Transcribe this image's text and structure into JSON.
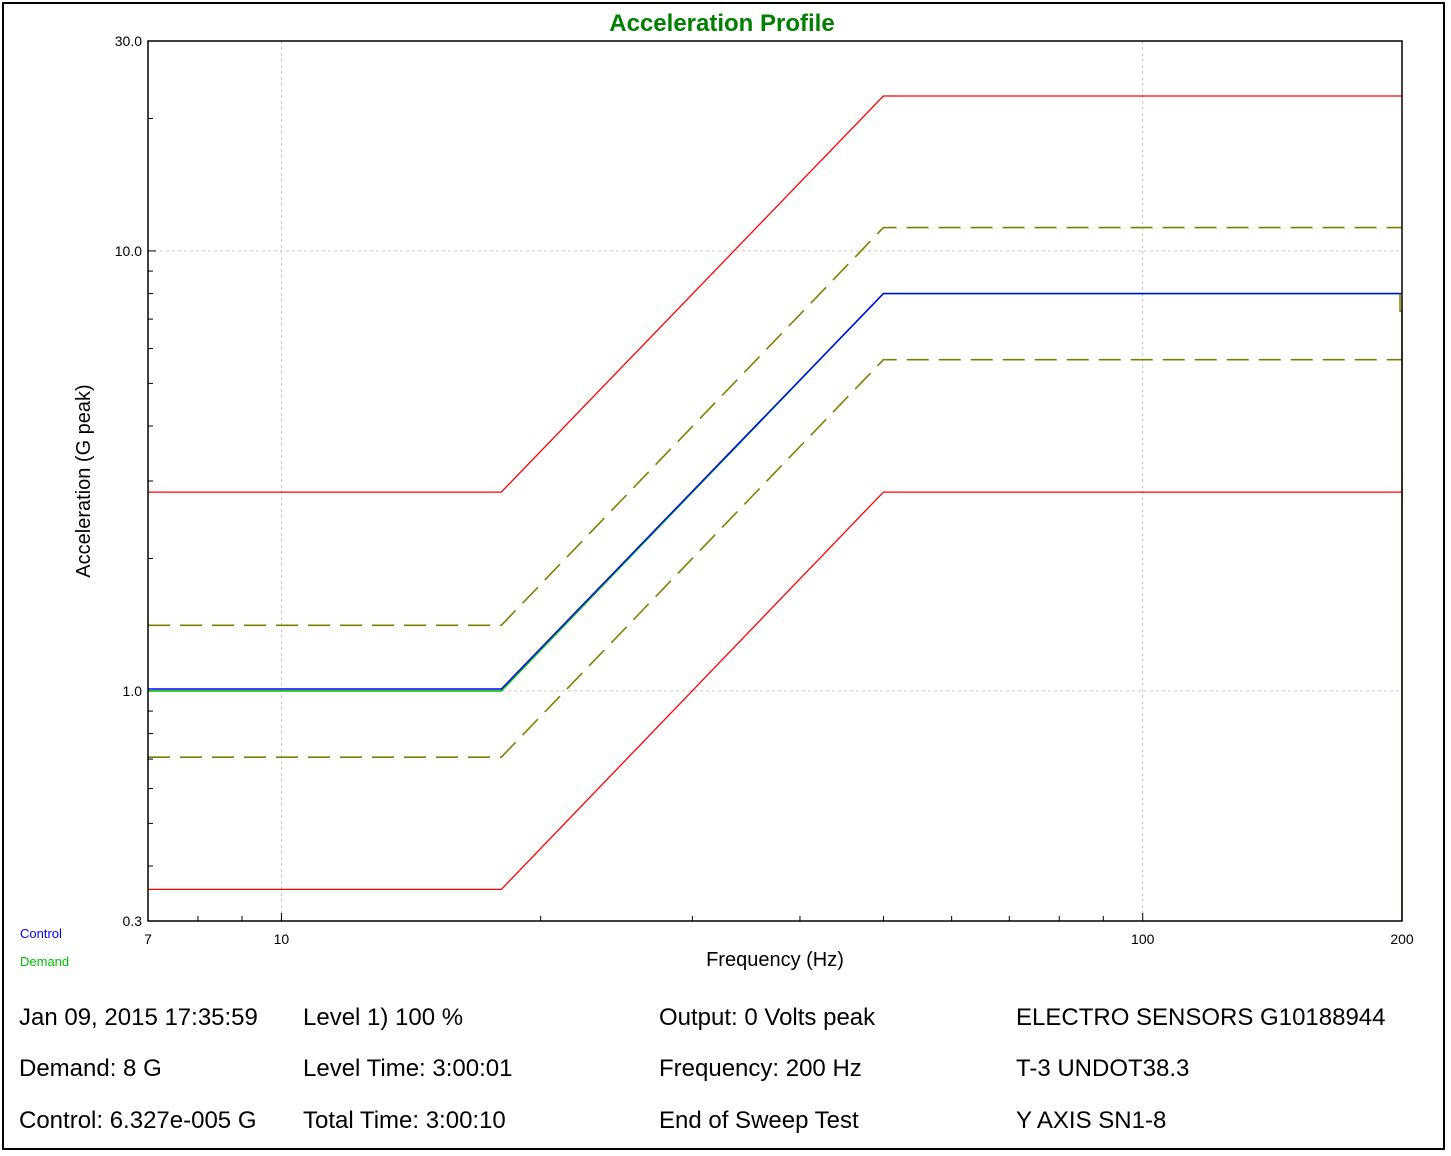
{
  "chart_data": {
    "type": "line",
    "title": "Acceleration Profile",
    "xlabel": "Frequency (Hz)",
    "ylabel": "Acceleration (G peak)",
    "xscale": "log",
    "yscale": "log",
    "xlim": [
      7,
      200
    ],
    "ylim": [
      0.3,
      30.0
    ],
    "x_tick_labels": [
      "7",
      "10",
      "100",
      "200"
    ],
    "x_ticks": [
      7,
      10,
      100,
      200
    ],
    "y_tick_labels": [
      "30.0",
      "10.0",
      "1.0",
      "0.3"
    ],
    "y_ticks": [
      30,
      10,
      1,
      0.3
    ],
    "grid": true,
    "colors": {
      "title": "#008000",
      "abort_limit": "#ff0000",
      "alarm_limit": "#808000",
      "control": "#0000ff",
      "demand": "#00c000",
      "grid": "#c8c8c8"
    },
    "series": [
      {
        "role": "abort-high",
        "style": "solid",
        "x": [
          7,
          18,
          50,
          200
        ],
        "y": [
          2.83,
          2.83,
          22.5,
          22.5
        ]
      },
      {
        "role": "alarm-high",
        "style": "dashed",
        "x": [
          7,
          18,
          50,
          200
        ],
        "y": [
          1.41,
          1.41,
          11.3,
          11.3
        ]
      },
      {
        "role": "demand",
        "style": "solid",
        "x": [
          7,
          18,
          50,
          200
        ],
        "y": [
          1.0,
          1.0,
          8.0,
          8.0
        ]
      },
      {
        "role": "control",
        "style": "solid",
        "x": [
          7,
          18,
          50,
          190,
          200
        ],
        "y": [
          1.01,
          1.01,
          8.0,
          8.0,
          8.0
        ]
      },
      {
        "role": "alarm-low",
        "style": "dashed",
        "x": [
          7,
          18,
          50,
          200
        ],
        "y": [
          0.707,
          0.707,
          5.66,
          5.66
        ]
      },
      {
        "role": "abort-low",
        "style": "solid",
        "x": [
          7,
          18,
          50,
          200
        ],
        "y": [
          0.354,
          0.354,
          2.83,
          2.83
        ]
      }
    ],
    "legend": [
      "Control",
      "Demand"
    ],
    "legend_placement": "bottom-left"
  },
  "info": {
    "col1": [
      "Jan 09, 2015 17:35:59",
      "Demand: 8 G",
      "Control: 6.327e-005 G"
    ],
    "col2": [
      "Level 1) 100 %",
      "Level Time: 3:00:01",
      "Total Time: 3:00:10"
    ],
    "col3": [
      "Output: 0 Volts peak",
      "Frequency: 200 Hz",
      "End of Sweep Test"
    ],
    "col4": [
      "ELECTRO SENSORS G10188944",
      "T-3 UNDOT38.3",
      "Y AXIS SN1-8"
    ]
  }
}
